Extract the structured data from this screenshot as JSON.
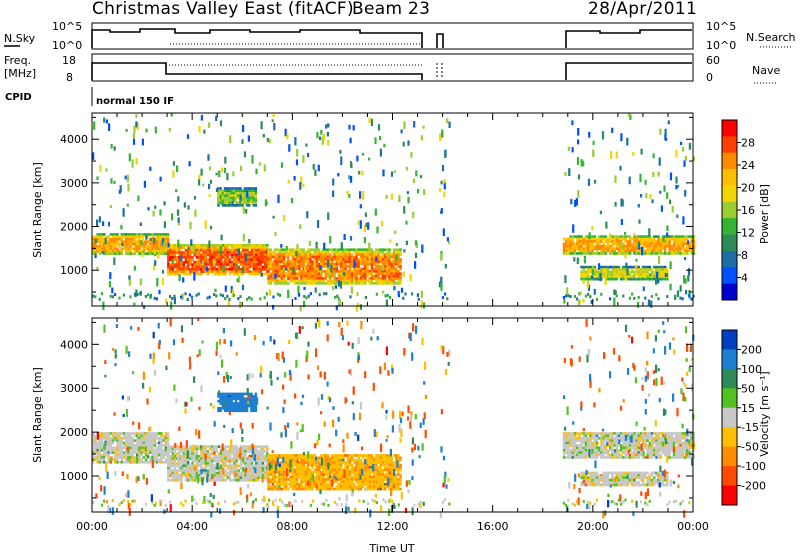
{
  "header": {
    "station": "Christmas Valley East (fitACF)",
    "beam": "Beam 23",
    "date": "28/Apr/2011"
  },
  "top_panel": {
    "nsky_label": "N.Sky",
    "nsearch_label": "N.Search",
    "freq_label_line1": "Freq.",
    "freq_label_line2": "[MHz]",
    "nave_label": "Nave",
    "cpid_label": "CPID",
    "mode_label": "normal 150 IF",
    "count_ticks": [
      "10^5",
      "10^0"
    ],
    "freq_ticks": [
      "18",
      "8"
    ],
    "nave_ticks": [
      "60",
      "0"
    ]
  },
  "colorbars": {
    "power": {
      "label": "Power [dB]",
      "ticks": [
        "28",
        "24",
        "20",
        "16",
        "12",
        "8",
        "4"
      ],
      "colors": [
        "#ff0000",
        "#ff4000",
        "#ff8a00",
        "#ffbf00",
        "#f2d400",
        "#9acd32",
        "#34b334",
        "#2e8b57",
        "#1c6ea4",
        "#0050ff",
        "#0000cc"
      ]
    },
    "velocity": {
      "label": "Velocity [m s⁻¹]",
      "ticks": [
        "200",
        "100",
        "50",
        "15",
        "-15",
        "-50",
        "-100",
        "-200"
      ],
      "colors": [
        "#0040c0",
        "#1e7fd0",
        "#2e8b57",
        "#52c21f",
        "#c8c8c8",
        "#ffbf00",
        "#ff8c00",
        "#ff4a00",
        "#ff0000"
      ]
    }
  },
  "chart_data": [
    {
      "type": "heatmap",
      "name": "power",
      "ylabel": "Slant Range [km]",
      "xlabel": "",
      "x_ticks": [
        "00:00",
        "04:00",
        "08:00",
        "12:00",
        "16:00",
        "20:00",
        "00:00"
      ],
      "y_ticks": [
        "4000",
        "3000",
        "2000",
        "1000"
      ],
      "xlim_hours": [
        0,
        24
      ],
      "ylim_km": [
        180,
        4600
      ],
      "data_gaps_hours": [
        [
          13.3,
          13.85
        ],
        [
          14.25,
          18.8
        ]
      ],
      "echo_regions": [
        {
          "t_start": 0.0,
          "t_end": 3.0,
          "r_low": 1400,
          "r_high": 1850,
          "power_db": 24
        },
        {
          "t_start": 3.0,
          "t_end": 7.0,
          "r_low": 900,
          "r_high": 1600,
          "power_db": 28
        },
        {
          "t_start": 7.0,
          "t_end": 12.3,
          "r_low": 700,
          "r_high": 1500,
          "power_db": 26
        },
        {
          "t_start": 5.0,
          "t_end": 6.5,
          "r_low": 2500,
          "r_high": 2900,
          "power_db": 16
        },
        {
          "t_start": 18.8,
          "t_end": 24.0,
          "r_low": 1400,
          "r_high": 1800,
          "power_db": 24
        },
        {
          "t_start": 19.5,
          "t_end": 23.0,
          "r_low": 800,
          "r_high": 1100,
          "power_db": 18
        }
      ]
    },
    {
      "type": "heatmap",
      "name": "velocity",
      "ylabel": "Slant Range [km]",
      "xlabel": "Time UT",
      "x_ticks": [
        "00:00",
        "04:00",
        "08:00",
        "12:00",
        "16:00",
        "20:00",
        "00:00"
      ],
      "y_ticks": [
        "4000",
        "3000",
        "2000",
        "1000"
      ],
      "xlim_hours": [
        0,
        24
      ],
      "ylim_km": [
        180,
        4600
      ],
      "data_gaps_hours": [
        [
          13.3,
          13.85
        ],
        [
          14.25,
          18.8
        ]
      ],
      "echo_regions": [
        {
          "t_start": 0.0,
          "t_end": 3.0,
          "r_low": 1300,
          "r_high": 2000,
          "velocity_ms": 0
        },
        {
          "t_start": 3.0,
          "t_end": 7.0,
          "r_low": 900,
          "r_high": 1700,
          "velocity_ms": 0
        },
        {
          "t_start": 7.0,
          "t_end": 12.3,
          "r_low": 700,
          "r_high": 1500,
          "velocity_ms": -40
        },
        {
          "t_start": 5.0,
          "t_end": 6.5,
          "r_low": 2500,
          "r_high": 2900,
          "velocity_ms": 150
        },
        {
          "t_start": 18.8,
          "t_end": 24.0,
          "r_low": 1400,
          "r_high": 2000,
          "velocity_ms": 0
        },
        {
          "t_start": 19.5,
          "t_end": 23.0,
          "r_low": 800,
          "r_high": 1100,
          "velocity_ms": 0
        }
      ]
    }
  ]
}
